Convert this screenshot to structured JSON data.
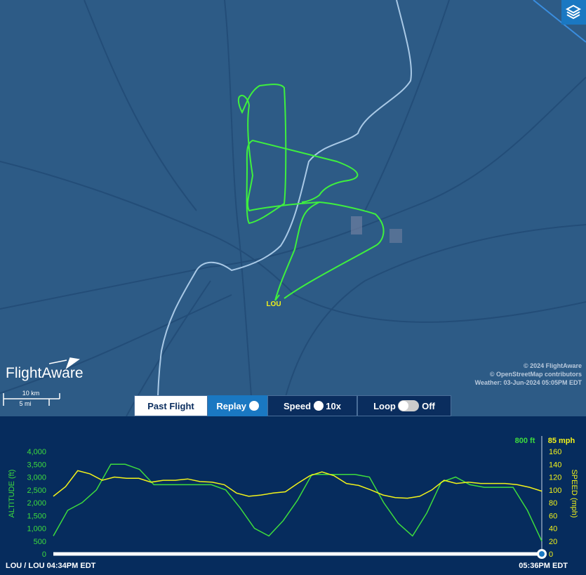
{
  "map": {
    "airport": "LOU",
    "copyright": "© 2024 FlightAware",
    "osm": "© OpenStreetMap contributors",
    "weather": "Weather: 03-Jun-2024 05:05PM EDT",
    "logo": "FlightAware",
    "scale_km": "10 km",
    "scale_mi": "5 mi"
  },
  "controls": {
    "past_flight": "Past Flight",
    "replay": "Replay",
    "speed": "Speed",
    "speed_value": "10x",
    "loop": "Loop",
    "loop_state": "Off"
  },
  "chart_data": {
    "type": "line",
    "altitude_axis_label": "ALTITUDE (ft)",
    "speed_axis_label": "SPEED (mph)",
    "current_altitude": "800 ft",
    "current_speed": "85 mph",
    "start_label": "LOU / LOU 04:34PM EDT",
    "end_label": "05:36PM EDT",
    "ylim": [
      0,
      4000
    ],
    "yticks": [
      0,
      500,
      {
        "value": 1000,
        "label": "1,000"
      },
      {
        "value": 1500,
        "label": "1,500"
      },
      {
        "value": 2000,
        "label": "2,000"
      },
      {
        "value": 2500,
        "label": "2,500"
      },
      {
        "value": 3000,
        "label": "3,000"
      },
      {
        "value": 3500,
        "label": "3,500"
      },
      {
        "value": 4000,
        "label": "4,000"
      }
    ],
    "y2lim": [
      0,
      160
    ],
    "y2ticks": [
      0,
      20,
      40,
      60,
      80,
      100,
      120,
      140,
      160
    ],
    "series": [
      {
        "color": "#3ddc3d",
        "values": [
          700,
          1700,
          2000,
          2500,
          3500,
          3500,
          3300,
          2700,
          2700,
          2700,
          2700,
          2700,
          2500,
          1800,
          1000,
          700,
          1300,
          2100,
          3100,
          3100,
          3100,
          3100,
          3000,
          2000,
          1200,
          700,
          1600,
          2800,
          3000,
          2700,
          2600,
          2600,
          2600,
          1700,
          500
        ]
      },
      {
        "color": "#f2f21a",
        "axis": "y2",
        "values": [
          90,
          105,
          130,
          125,
          115,
          120,
          118,
          118,
          112,
          115,
          115,
          117,
          113,
          112,
          108,
          95,
          90,
          92,
          95,
          97,
          110,
          122,
          128,
          122,
          110,
          107,
          100,
          92,
          88,
          87,
          90,
          100,
          115,
          110,
          112,
          110,
          110,
          110,
          108,
          104,
          98
        ]
      }
    ]
  }
}
